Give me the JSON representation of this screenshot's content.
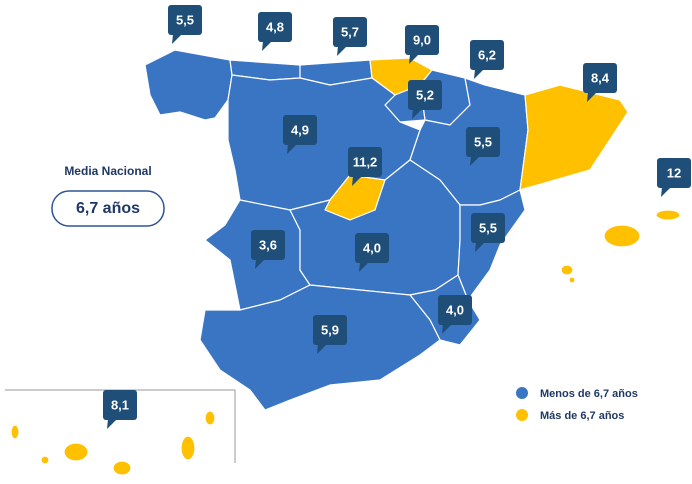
{
  "national": {
    "title": "Media Nacional",
    "value": 6.7,
    "label": "6,7 años"
  },
  "regions": [
    {
      "label": "5,5",
      "value": 5.5
    },
    {
      "label": "4,8",
      "value": 4.8
    },
    {
      "label": "5,7",
      "value": 5.7
    },
    {
      "label": "9,0",
      "value": 9.0
    },
    {
      "label": "6,2",
      "value": 6.2
    },
    {
      "label": "5,2",
      "value": 5.2
    },
    {
      "label": "4,9",
      "value": 4.9
    },
    {
      "label": "5,5",
      "value": 5.5
    },
    {
      "label": "8,4",
      "value": 8.4
    },
    {
      "label": "11,2",
      "value": 11.2
    },
    {
      "label": "3,6",
      "value": 3.6
    },
    {
      "label": "4,0",
      "value": 4.0
    },
    {
      "label": "5,5",
      "value": 5.5
    },
    {
      "label": "4,0",
      "value": 4.0
    },
    {
      "label": "5,9",
      "value": 5.9
    },
    {
      "label": "12",
      "value": 12
    },
    {
      "label": "8,1",
      "value": 8.1
    }
  ],
  "legend": [
    {
      "label": "Menos de 6,7 años",
      "color": "#3a75c4"
    },
    {
      "label": "Más de 6,7 años",
      "color": "#ffc000"
    }
  ]
}
